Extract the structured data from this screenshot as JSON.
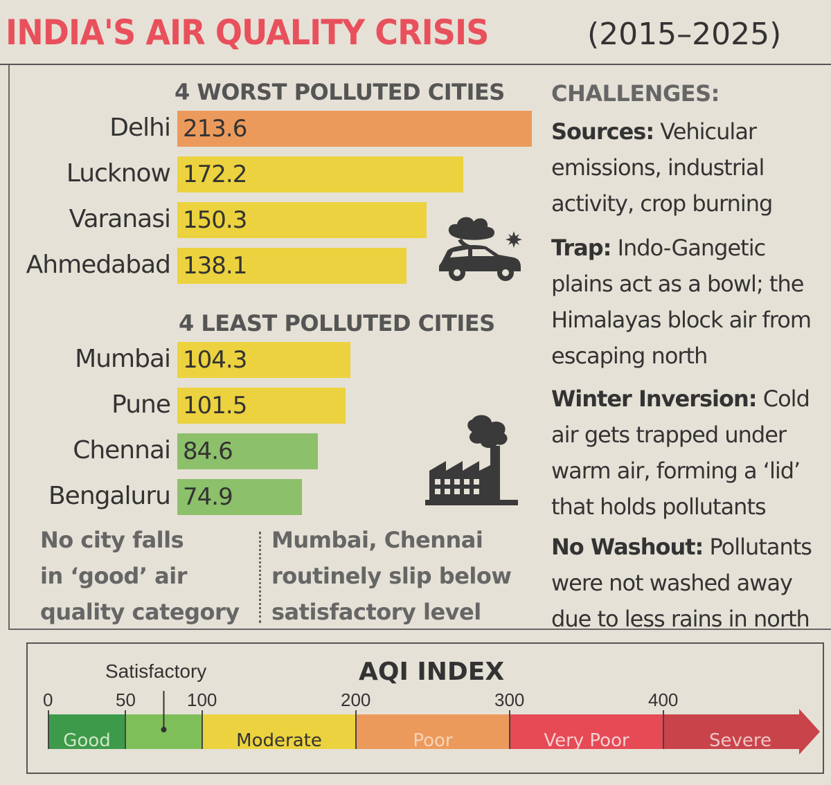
{
  "title": {
    "main": "INDIA'S AIR QUALITY CRISIS",
    "years": "(2015–2025)"
  },
  "chart_data": {
    "type": "bar",
    "orientation": "horizontal",
    "title": "INDIA'S AIR QUALITY CRISIS (2015–2025)",
    "groups": [
      {
        "heading": "4 WORST POLLUTED CITIES",
        "categories": [
          "Delhi",
          "Lucknow",
          "Varanasi",
          "Ahmedabad"
        ],
        "values": [
          213.6,
          172.2,
          150.3,
          138.1
        ],
        "value_labels": [
          "213.6",
          "172.2",
          "150.3",
          "138.1"
        ],
        "colors": [
          "#ec9a5c",
          "#ecd23e",
          "#ecd23e",
          "#ecd23e"
        ]
      },
      {
        "heading": "4 LEAST POLLUTED CITIES",
        "categories": [
          "Mumbai",
          "Pune",
          "Chennai",
          "Bengaluru"
        ],
        "values": [
          104.3,
          101.5,
          84.6,
          74.9
        ],
        "value_labels": [
          "104.3",
          "101.5",
          "84.6",
          "74.9"
        ],
        "colors": [
          "#ecd23e",
          "#ecd23e",
          "#8cc06a",
          "#8cc06a"
        ]
      }
    ],
    "xlim": [
      0,
      213.6
    ]
  },
  "notes": {
    "left": [
      "No city falls",
      "in ‘good’ air",
      "quality category"
    ],
    "right": [
      "Mumbai, Chennai",
      "routinely slip below",
      "satisfactory level"
    ]
  },
  "challenges": {
    "title": "CHALLENGES:",
    "items": [
      {
        "label": "Sources:",
        "text": "Vehicular emissions, industrial activity, crop burning"
      },
      {
        "label": "Trap:",
        "text": "Indo-Gangetic plains act as a bowl; the Himalayas block air from escaping north"
      },
      {
        "label": "Winter Inversion:",
        "text": "Cold air gets trapped under warm air, forming a ‘lid’ that holds pollutants"
      },
      {
        "label": "No Washout:",
        "text": "Pollutants were not washed away due to less rains in north"
      }
    ]
  },
  "aqi_scale": {
    "title": "AQI INDEX",
    "marker_label": "Satisfactory",
    "ticks": [
      "0",
      "50",
      "100",
      "200",
      "300",
      "400"
    ],
    "tick_values": [
      0,
      50,
      100,
      200,
      300,
      400
    ],
    "max": 500,
    "segments": [
      {
        "label": "Good",
        "from": 0,
        "to": 50,
        "color": "#3d9a4a",
        "text_color": "#cfe6c7"
      },
      {
        "label": "",
        "from": 50,
        "to": 100,
        "color": "#7fbf5a",
        "text_color": "#333333"
      },
      {
        "label": "Moderate",
        "from": 100,
        "to": 200,
        "color": "#ecd23e",
        "text_color": "#333333"
      },
      {
        "label": "Poor",
        "from": 200,
        "to": 300,
        "color": "#ec9a5c",
        "text_color": "#f6d4b8"
      },
      {
        "label": "Very Poor",
        "from": 300,
        "to": 400,
        "color": "#e54a55",
        "text_color": "#f7d0d3"
      },
      {
        "label": "Severe",
        "from": 400,
        "to": 500,
        "color": "#c8444a",
        "text_color": "#f0c5c7"
      }
    ]
  },
  "icons": {
    "car": "car-emission-icon",
    "factory": "factory-icon"
  }
}
